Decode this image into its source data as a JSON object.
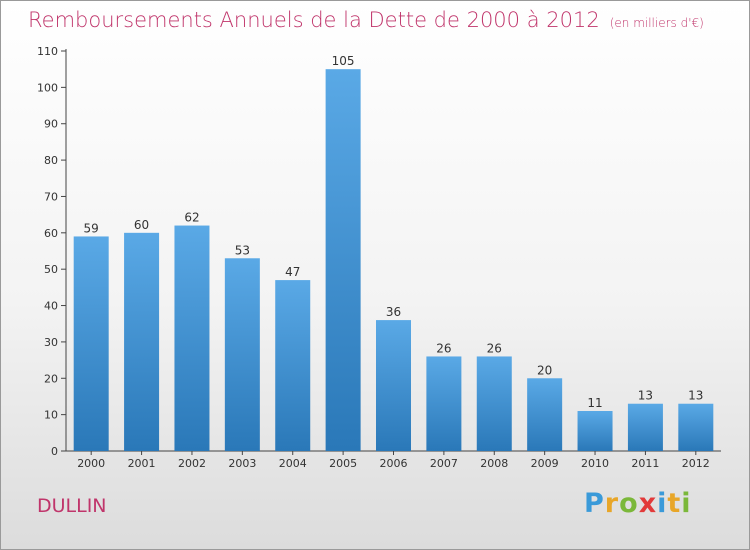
{
  "header": {
    "title": "Remboursements Annuels de la Dette de 2000 à 2012",
    "unit": "(en milliers d'€)"
  },
  "footer": {
    "place": "DULLIN",
    "logo": [
      "P",
      "r",
      "o",
      "x",
      "i",
      "t",
      "i"
    ],
    "logo_colors": [
      "#3a9ad9",
      "#e8a628",
      "#7bb83a",
      "#e23a3a",
      "#3a9ad9",
      "#e8a628",
      "#7bb83a"
    ]
  },
  "colors": {
    "bar_top": "#5aa9e6",
    "bar_bottom": "#2a78b8",
    "title": "#c0356b"
  },
  "chart_data": {
    "type": "bar",
    "categories": [
      "2000",
      "2001",
      "2002",
      "2003",
      "2004",
      "2005",
      "2006",
      "2007",
      "2008",
      "2009",
      "2010",
      "2011",
      "2012"
    ],
    "values": [
      59,
      60,
      62,
      53,
      47,
      105,
      36,
      26,
      26,
      20,
      11,
      13,
      13
    ],
    "yticks": [
      0,
      10,
      20,
      30,
      40,
      50,
      60,
      70,
      80,
      90,
      100,
      110
    ],
    "ylim": [
      0,
      110
    ],
    "grid": false,
    "legend": "none"
  }
}
